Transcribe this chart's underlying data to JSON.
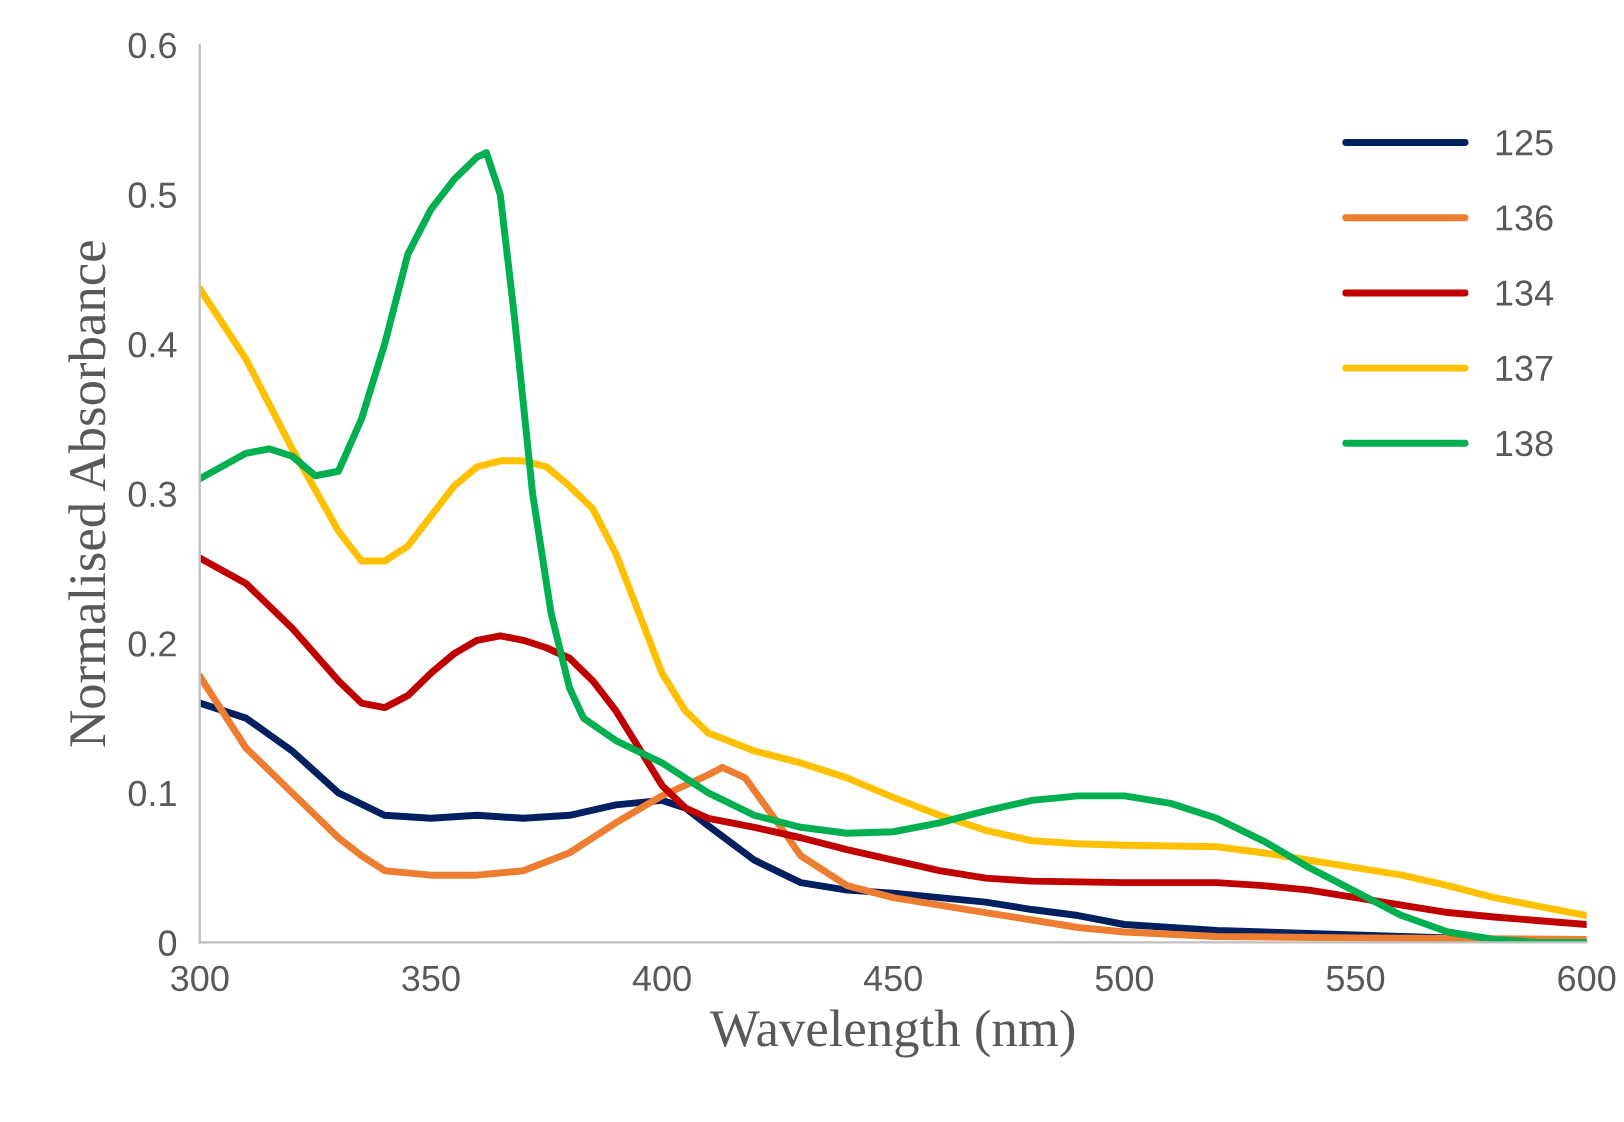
{
  "chart_data": {
    "type": "line",
    "xlabel": "Wavelength (nm)",
    "ylabel": "Normalised Absorbance",
    "xlim": [
      300,
      600
    ],
    "xticks": [
      300,
      350,
      400,
      450,
      500,
      550,
      600
    ],
    "ylim": [
      0,
      0.6
    ],
    "yticks": [
      {
        "value": 0,
        "label": "0"
      },
      0.1,
      0.2,
      0.3,
      0.4,
      0.5,
      0.6
    ],
    "grid": false,
    "legend": "right",
    "line_style": "solid",
    "marker": "none",
    "series": [
      {
        "name": "125",
        "color": "#002060",
        "x": [
          300,
          310,
          320,
          330,
          340,
          350,
          360,
          370,
          380,
          390,
          400,
          405,
          410,
          420,
          430,
          440,
          450,
          460,
          470,
          480,
          490,
          500,
          520,
          540,
          560,
          580,
          600
        ],
        "values": [
          0.16,
          0.15,
          0.128,
          0.1,
          0.085,
          0.083,
          0.085,
          0.083,
          0.085,
          0.092,
          0.095,
          0.09,
          0.078,
          0.055,
          0.04,
          0.035,
          0.033,
          0.03,
          0.027,
          0.022,
          0.018,
          0.012,
          0.008,
          0.006,
          0.004,
          0.002,
          0
        ]
      },
      {
        "name": "136",
        "color": "#ed7d31",
        "x": [
          300,
          310,
          320,
          330,
          335,
          340,
          350,
          360,
          370,
          380,
          390,
          400,
          410,
          413,
          418,
          425,
          430,
          440,
          450,
          460,
          470,
          480,
          490,
          500,
          520,
          550,
          600
        ],
        "values": [
          0.178,
          0.13,
          0.1,
          0.07,
          0.058,
          0.048,
          0.045,
          0.045,
          0.048,
          0.06,
          0.08,
          0.098,
          0.112,
          0.117,
          0.11,
          0.08,
          0.058,
          0.038,
          0.03,
          0.025,
          0.02,
          0.015,
          0.01,
          0.007,
          0.004,
          0.003,
          0.002
        ]
      },
      {
        "name": "134",
        "color": "#c00000",
        "x": [
          300,
          310,
          320,
          330,
          335,
          340,
          345,
          350,
          355,
          360,
          365,
          370,
          375,
          380,
          385,
          390,
          395,
          400,
          405,
          410,
          420,
          430,
          440,
          450,
          460,
          470,
          480,
          500,
          520,
          530,
          540,
          550,
          560,
          570,
          580,
          600
        ],
        "values": [
          0.257,
          0.24,
          0.21,
          0.175,
          0.16,
          0.157,
          0.165,
          0.18,
          0.193,
          0.202,
          0.205,
          0.202,
          0.197,
          0.19,
          0.175,
          0.155,
          0.13,
          0.105,
          0.09,
          0.083,
          0.077,
          0.07,
          0.062,
          0.055,
          0.048,
          0.043,
          0.041,
          0.04,
          0.04,
          0.038,
          0.035,
          0.03,
          0.025,
          0.02,
          0.017,
          0.012
        ]
      },
      {
        "name": "137",
        "color": "#ffc000",
        "x": [
          300,
          310,
          320,
          330,
          335,
          340,
          345,
          350,
          355,
          360,
          365,
          370,
          375,
          380,
          385,
          390,
          395,
          400,
          405,
          410,
          420,
          430,
          440,
          450,
          460,
          470,
          480,
          490,
          500,
          520,
          530,
          540,
          550,
          560,
          570,
          580,
          590,
          600
        ],
        "values": [
          0.437,
          0.39,
          0.33,
          0.275,
          0.255,
          0.255,
          0.265,
          0.285,
          0.305,
          0.318,
          0.322,
          0.322,
          0.318,
          0.305,
          0.29,
          0.26,
          0.22,
          0.18,
          0.155,
          0.14,
          0.128,
          0.12,
          0.11,
          0.097,
          0.085,
          0.075,
          0.068,
          0.066,
          0.065,
          0.064,
          0.06,
          0.055,
          0.05,
          0.045,
          0.038,
          0.03,
          0.024,
          0.018
        ]
      },
      {
        "name": "138",
        "color": "#00b050",
        "x": [
          300,
          310,
          315,
          320,
          325,
          330,
          335,
          340,
          345,
          350,
          355,
          360,
          362,
          365,
          368,
          372,
          376,
          380,
          383,
          390,
          400,
          410,
          420,
          430,
          440,
          450,
          460,
          470,
          480,
          490,
          500,
          510,
          520,
          530,
          540,
          550,
          560,
          570,
          580,
          590,
          600
        ],
        "values": [
          0.31,
          0.327,
          0.33,
          0.325,
          0.312,
          0.315,
          0.35,
          0.4,
          0.46,
          0.49,
          0.51,
          0.525,
          0.528,
          0.5,
          0.42,
          0.3,
          0.22,
          0.17,
          0.15,
          0.135,
          0.12,
          0.1,
          0.085,
          0.077,
          0.073,
          0.074,
          0.08,
          0.088,
          0.095,
          0.098,
          0.098,
          0.093,
          0.083,
          0.068,
          0.05,
          0.034,
          0.018,
          0.007,
          0.002,
          0,
          0
        ]
      }
    ]
  }
}
